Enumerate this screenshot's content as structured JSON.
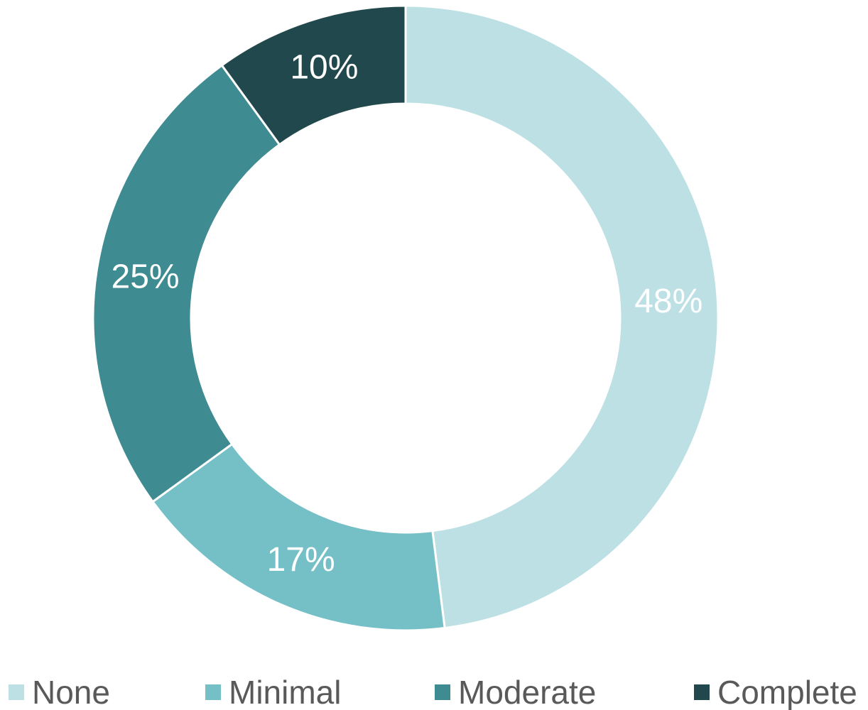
{
  "chart_data": {
    "type": "pie",
    "donut": true,
    "title": "",
    "start": "12 o'clock, clockwise",
    "categories": [
      "None",
      "Minimal",
      "Moderate",
      "Complete"
    ],
    "values": [
      48,
      17,
      25,
      10
    ],
    "labels": [
      "48%",
      "17%",
      "25%",
      "10%"
    ],
    "colors": [
      "#BCE0E4",
      "#75BFC6",
      "#3E8B91",
      "#21484C"
    ],
    "legend": "bottom"
  }
}
